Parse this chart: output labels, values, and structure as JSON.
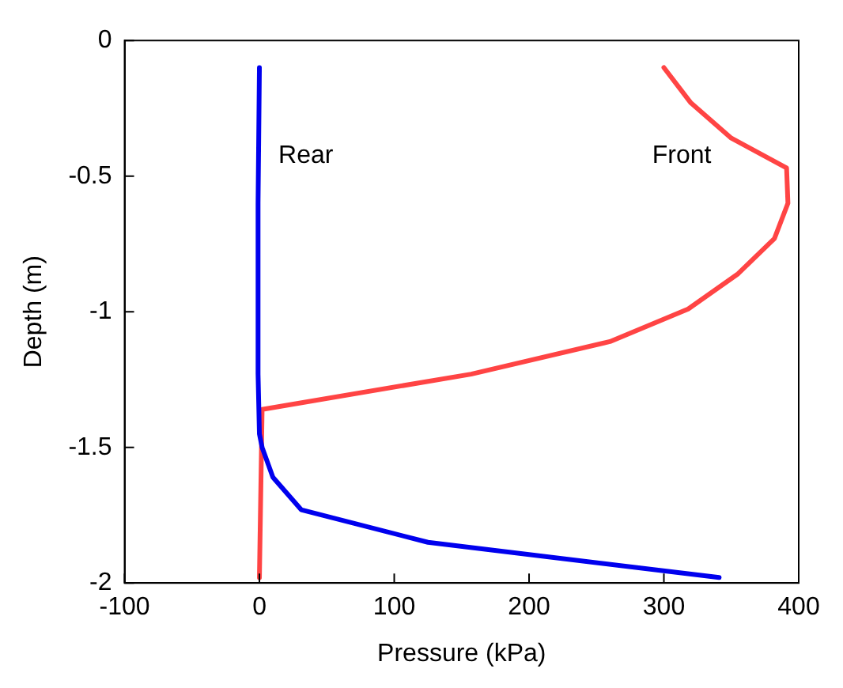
{
  "chart_data": {
    "type": "line",
    "xlabel": "Pressure (kPa)",
    "ylabel": "Depth (m)",
    "xlim": [
      -100,
      400
    ],
    "xticks": [
      -100,
      0,
      100,
      200,
      300,
      400
    ],
    "ylim": [
      -2,
      0
    ],
    "yticks": [
      -2,
      -1.5,
      -1,
      -0.5,
      0
    ],
    "grid": false,
    "legend": false,
    "marker": "none",
    "line_style": "solid",
    "series": [
      {
        "name": "Rear",
        "color": "#0000ee",
        "x": [
          0,
          -1,
          -1,
          0,
          2,
          10,
          31,
          125,
          341
        ],
        "values": [
          -0.1,
          -0.6,
          -1.23,
          -1.45,
          -1.5,
          -1.61,
          -1.73,
          -1.85,
          -1.98
        ]
      },
      {
        "name": "Front",
        "color": "#ff4444",
        "x": [
          300,
          320,
          350,
          391,
          392,
          382,
          355,
          318,
          260,
          157,
          2,
          0
        ],
        "values": [
          -0.1,
          -0.23,
          -0.36,
          -0.47,
          -0.6,
          -0.73,
          -0.86,
          -0.99,
          -1.11,
          -1.23,
          -1.36,
          -1.98
        ]
      }
    ]
  }
}
